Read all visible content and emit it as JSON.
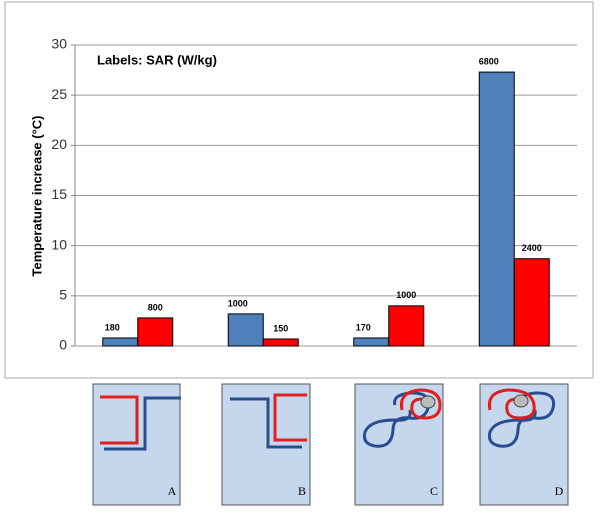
{
  "chart_data": {
    "type": "bar",
    "annotation": "Labels: SAR (W/kg)",
    "y_label": "Temperature increase (°C)",
    "categories": [
      "A",
      "B",
      "C",
      "D"
    ],
    "series": [
      {
        "color": "#4f81bd",
        "values": [
          0.8,
          3.2,
          0.8,
          27.3
        ],
        "sar": [
          180,
          1000,
          170,
          6800
        ]
      },
      {
        "color": "#ff0000",
        "values": [
          2.8,
          0.7,
          4.0,
          8.7
        ],
        "sar": [
          800,
          150,
          1000,
          2400
        ]
      }
    ],
    "ylim": [
      0,
      30
    ],
    "yticks": [
      0,
      5,
      10,
      15,
      20,
      25,
      30
    ],
    "grid": true
  }
}
